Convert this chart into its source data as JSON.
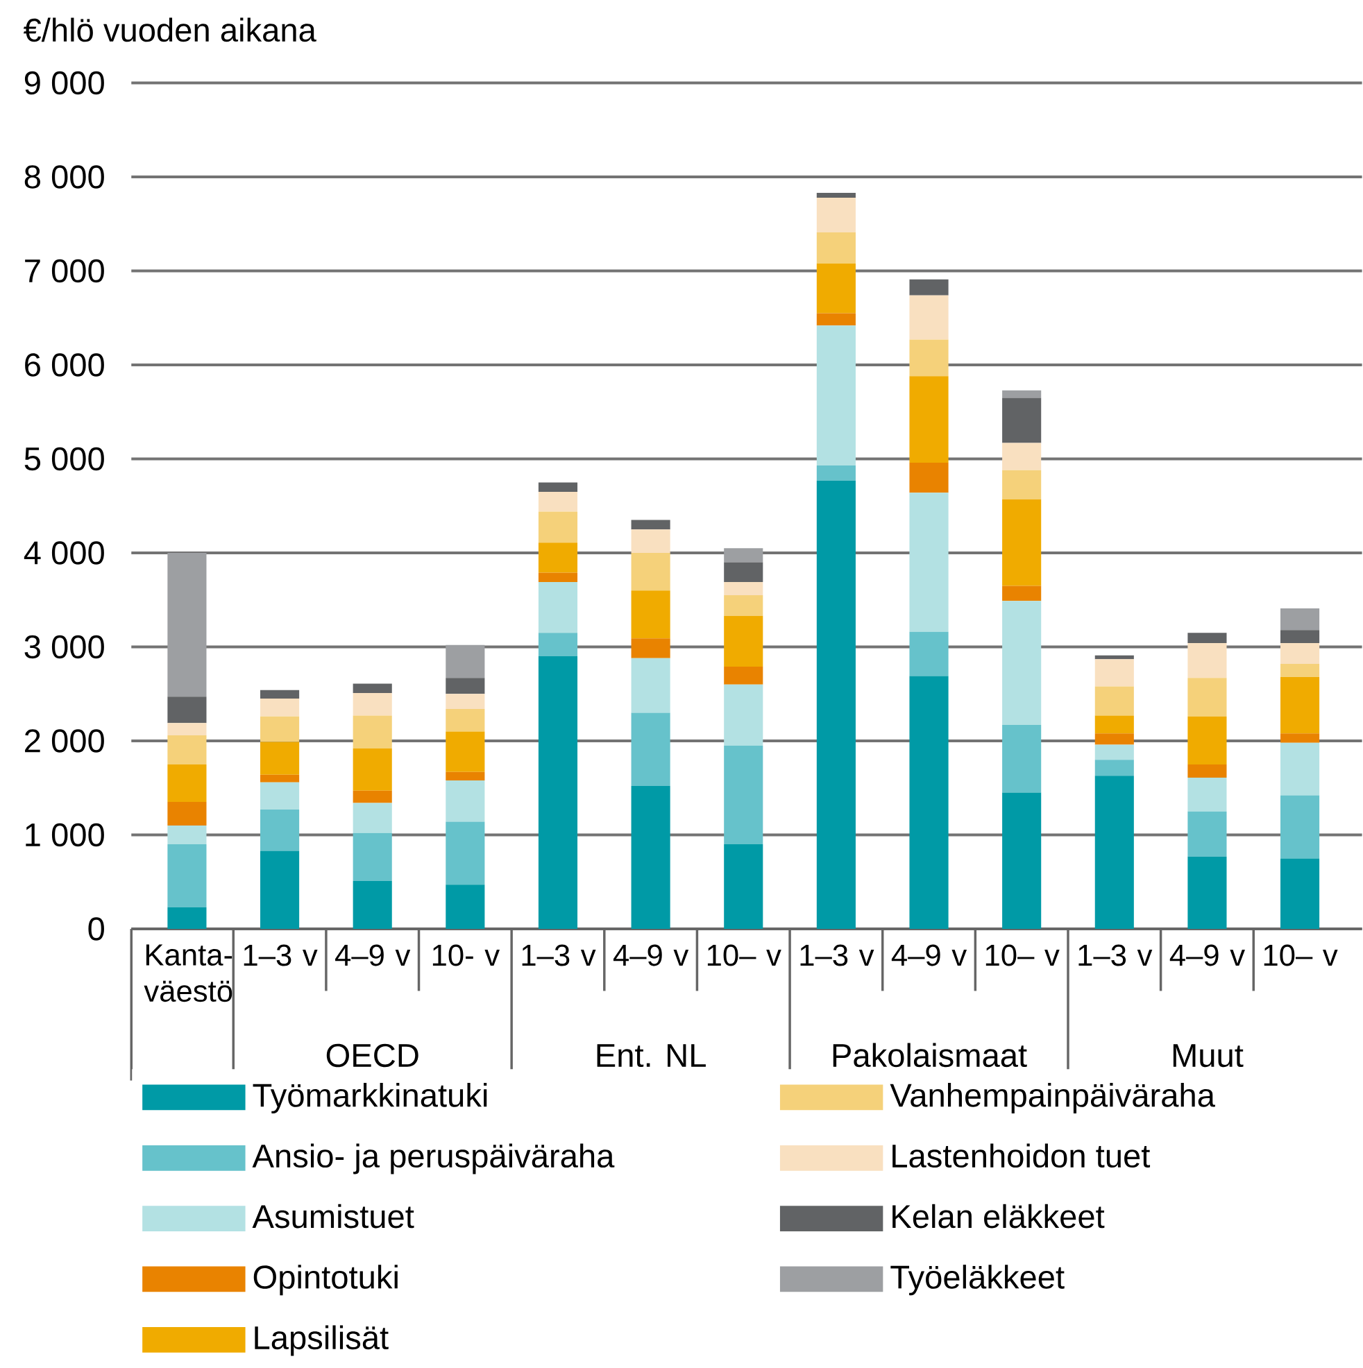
{
  "chart_data": {
    "type": "bar",
    "stacked": true,
    "ylabel": "€/hlö vuoden aikana",
    "categories": [
      "Kanta-väestö",
      "1–3 v",
      "4–9 v",
      "10- v",
      "1–3 v",
      "4–9 v",
      "10– v",
      "1–3 v",
      "4–9 v",
      "10– v",
      "1–3 v",
      "4–9 v",
      "10– v"
    ],
    "annotations": [
      "OECD",
      "Ent. NL",
      "Pakolaismaat",
      "Muut"
    ],
    "series": [
      {
        "name": "Työmarkkinatuki",
        "color": "#009aa6",
        "values": [
          230,
          830,
          510,
          470,
          2900,
          1520,
          900,
          4770,
          2690,
          1450,
          1630,
          770,
          750
        ]
      },
      {
        "name": "Ansio- ja peruspäiväraha",
        "color": "#66c2cb",
        "values": [
          670,
          440,
          510,
          670,
          250,
          780,
          1050,
          160,
          470,
          720,
          170,
          480,
          670
        ]
      },
      {
        "name": "Asumistuet",
        "color": "#b3e1e3",
        "values": [
          200,
          290,
          320,
          440,
          540,
          580,
          650,
          1490,
          1480,
          1320,
          160,
          360,
          560
        ]
      },
      {
        "name": "Opintotuki",
        "color": "#e98300",
        "values": [
          250,
          80,
          130,
          90,
          100,
          210,
          190,
          130,
          320,
          160,
          120,
          140,
          100
        ]
      },
      {
        "name": "Lapsilisät",
        "color": "#f0ab00",
        "values": [
          400,
          350,
          450,
          430,
          320,
          510,
          540,
          530,
          920,
          920,
          190,
          510,
          600
        ]
      },
      {
        "name": "Vanhempainpäiväraha",
        "color": "#f5d17a",
        "values": [
          310,
          270,
          350,
          240,
          330,
          400,
          220,
          330,
          390,
          310,
          310,
          410,
          140
        ]
      },
      {
        "name": "Lastenhoidon tuet",
        "color": "#f9e0c0",
        "values": [
          130,
          190,
          240,
          160,
          210,
          250,
          140,
          370,
          470,
          290,
          290,
          370,
          220
        ]
      },
      {
        "name": "Kelan eläkkeet",
        "color": "#616365",
        "values": [
          280,
          90,
          100,
          170,
          100,
          100,
          210,
          50,
          170,
          480,
          40,
          110,
          140
        ]
      },
      {
        "name": "Työeläkkeet",
        "color": "#9d9fa2",
        "values": [
          1530,
          0,
          0,
          350,
          0,
          0,
          150,
          0,
          0,
          80,
          0,
          0,
          230
        ]
      }
    ],
    "ylim": [
      0,
      9000
    ],
    "yticks": [
      0,
      {
        "value": 1000,
        "label": "1 000"
      },
      {
        "value": 2000,
        "label": "2 000"
      },
      {
        "value": 3000,
        "label": "3 000"
      },
      {
        "value": 4000,
        "label": "4 000"
      },
      {
        "value": 5000,
        "label": "5 000"
      },
      {
        "value": 6000,
        "label": "6 000"
      },
      {
        "value": 7000,
        "label": "7 000"
      },
      {
        "value": 8000,
        "label": "8 000"
      },
      {
        "value": 9000,
        "label": "9 000"
      }
    ],
    "grid": "y",
    "legend": "bottom"
  }
}
